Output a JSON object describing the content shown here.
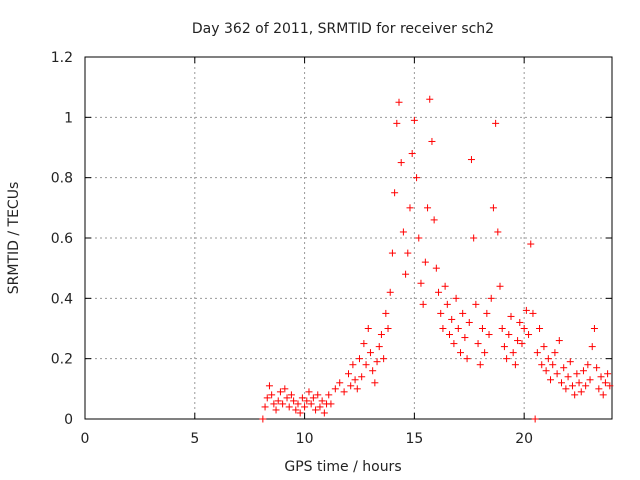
{
  "chart_data": {
    "type": "scatter",
    "title": "Day 362 of 2011, SRMTID for receiver sch2",
    "xlabel": "GPS time / hours",
    "ylabel": "SRMTID / TECUs",
    "xlim": [
      0,
      24
    ],
    "ylim": [
      0,
      1.2
    ],
    "xticks": [
      "0",
      "5",
      "10",
      "15",
      "20"
    ],
    "yticks": [
      "0",
      "0.2",
      "0.4",
      "0.6",
      "0.8",
      "1",
      "1.2"
    ],
    "grid": true,
    "marker": "+",
    "color": "#ff0000",
    "points": [
      [
        8.1,
        0.0
      ],
      [
        8.2,
        0.04
      ],
      [
        8.3,
        0.07
      ],
      [
        8.4,
        0.11
      ],
      [
        8.5,
        0.08
      ],
      [
        8.6,
        0.05
      ],
      [
        8.7,
        0.03
      ],
      [
        8.8,
        0.06
      ],
      [
        8.9,
        0.09
      ],
      [
        9.0,
        0.05
      ],
      [
        9.1,
        0.1
      ],
      [
        9.2,
        0.07
      ],
      [
        9.3,
        0.04
      ],
      [
        9.4,
        0.08
      ],
      [
        9.5,
        0.06
      ],
      [
        9.6,
        0.03
      ],
      [
        9.7,
        0.05
      ],
      [
        9.8,
        0.02
      ],
      [
        9.9,
        0.07
      ],
      [
        10.0,
        0.04
      ],
      [
        10.1,
        0.06
      ],
      [
        10.2,
        0.09
      ],
      [
        10.3,
        0.05
      ],
      [
        10.4,
        0.07
      ],
      [
        10.5,
        0.03
      ],
      [
        10.6,
        0.08
      ],
      [
        10.7,
        0.04
      ],
      [
        10.8,
        0.06
      ],
      [
        10.9,
        0.02
      ],
      [
        11.0,
        0.05
      ],
      [
        11.1,
        0.08
      ],
      [
        11.2,
        0.05
      ],
      [
        11.4,
        0.1
      ],
      [
        11.6,
        0.12
      ],
      [
        11.8,
        0.09
      ],
      [
        12.0,
        0.15
      ],
      [
        12.1,
        0.11
      ],
      [
        12.2,
        0.18
      ],
      [
        12.3,
        0.13
      ],
      [
        12.4,
        0.1
      ],
      [
        12.5,
        0.2
      ],
      [
        12.6,
        0.14
      ],
      [
        12.7,
        0.25
      ],
      [
        12.8,
        0.18
      ],
      [
        12.9,
        0.3
      ],
      [
        13.0,
        0.22
      ],
      [
        13.1,
        0.16
      ],
      [
        13.2,
        0.12
      ],
      [
        13.3,
        0.19
      ],
      [
        13.4,
        0.24
      ],
      [
        13.5,
        0.28
      ],
      [
        13.6,
        0.2
      ],
      [
        13.7,
        0.35
      ],
      [
        13.8,
        0.3
      ],
      [
        13.9,
        0.42
      ],
      [
        14.0,
        0.55
      ],
      [
        14.1,
        0.75
      ],
      [
        14.2,
        0.98
      ],
      [
        14.3,
        1.05
      ],
      [
        14.4,
        0.85
      ],
      [
        14.5,
        0.62
      ],
      [
        14.6,
        0.48
      ],
      [
        14.7,
        0.55
      ],
      [
        14.8,
        0.7
      ],
      [
        14.9,
        0.88
      ],
      [
        15.0,
        0.99
      ],
      [
        15.1,
        0.8
      ],
      [
        15.2,
        0.6
      ],
      [
        15.3,
        0.45
      ],
      [
        15.4,
        0.38
      ],
      [
        15.5,
        0.52
      ],
      [
        15.6,
        0.7
      ],
      [
        15.7,
        1.06
      ],
      [
        15.8,
        0.92
      ],
      [
        15.9,
        0.66
      ],
      [
        16.0,
        0.5
      ],
      [
        16.1,
        0.42
      ],
      [
        16.2,
        0.35
      ],
      [
        16.3,
        0.3
      ],
      [
        16.4,
        0.44
      ],
      [
        16.5,
        0.38
      ],
      [
        16.6,
        0.28
      ],
      [
        16.7,
        0.33
      ],
      [
        16.8,
        0.25
      ],
      [
        16.9,
        0.4
      ],
      [
        17.0,
        0.3
      ],
      [
        17.1,
        0.22
      ],
      [
        17.2,
        0.35
      ],
      [
        17.3,
        0.27
      ],
      [
        17.4,
        0.2
      ],
      [
        17.5,
        0.32
      ],
      [
        17.6,
        0.86
      ],
      [
        17.7,
        0.6
      ],
      [
        17.8,
        0.38
      ],
      [
        17.9,
        0.25
      ],
      [
        18.0,
        0.18
      ],
      [
        18.1,
        0.3
      ],
      [
        18.2,
        0.22
      ],
      [
        18.3,
        0.35
      ],
      [
        18.4,
        0.28
      ],
      [
        18.5,
        0.4
      ],
      [
        18.6,
        0.7
      ],
      [
        18.7,
        0.98
      ],
      [
        18.8,
        0.62
      ],
      [
        18.9,
        0.44
      ],
      [
        19.0,
        0.3
      ],
      [
        19.1,
        0.24
      ],
      [
        19.2,
        0.2
      ],
      [
        19.3,
        0.28
      ],
      [
        19.4,
        0.34
      ],
      [
        19.5,
        0.22
      ],
      [
        19.6,
        0.18
      ],
      [
        19.7,
        0.26
      ],
      [
        19.8,
        0.32
      ],
      [
        19.9,
        0.25
      ],
      [
        20.0,
        0.3
      ],
      [
        20.1,
        0.36
      ],
      [
        20.2,
        0.28
      ],
      [
        20.3,
        0.58
      ],
      [
        20.4,
        0.35
      ],
      [
        20.5,
        0.0
      ],
      [
        20.6,
        0.22
      ],
      [
        20.7,
        0.3
      ],
      [
        20.8,
        0.18
      ],
      [
        20.9,
        0.24
      ],
      [
        21.0,
        0.16
      ],
      [
        21.1,
        0.2
      ],
      [
        21.2,
        0.13
      ],
      [
        21.3,
        0.18
      ],
      [
        21.4,
        0.22
      ],
      [
        21.5,
        0.15
      ],
      [
        21.6,
        0.26
      ],
      [
        21.7,
        0.12
      ],
      [
        21.8,
        0.17
      ],
      [
        21.9,
        0.1
      ],
      [
        22.0,
        0.14
      ],
      [
        22.1,
        0.19
      ],
      [
        22.2,
        0.11
      ],
      [
        22.3,
        0.08
      ],
      [
        22.4,
        0.15
      ],
      [
        22.5,
        0.12
      ],
      [
        22.6,
        0.09
      ],
      [
        22.7,
        0.16
      ],
      [
        22.8,
        0.11
      ],
      [
        22.9,
        0.18
      ],
      [
        23.0,
        0.13
      ],
      [
        23.1,
        0.24
      ],
      [
        23.2,
        0.3
      ],
      [
        23.3,
        0.17
      ],
      [
        23.4,
        0.1
      ],
      [
        23.5,
        0.14
      ],
      [
        23.6,
        0.08
      ],
      [
        23.7,
        0.12
      ],
      [
        23.8,
        0.15
      ],
      [
        23.9,
        0.11
      ]
    ]
  }
}
